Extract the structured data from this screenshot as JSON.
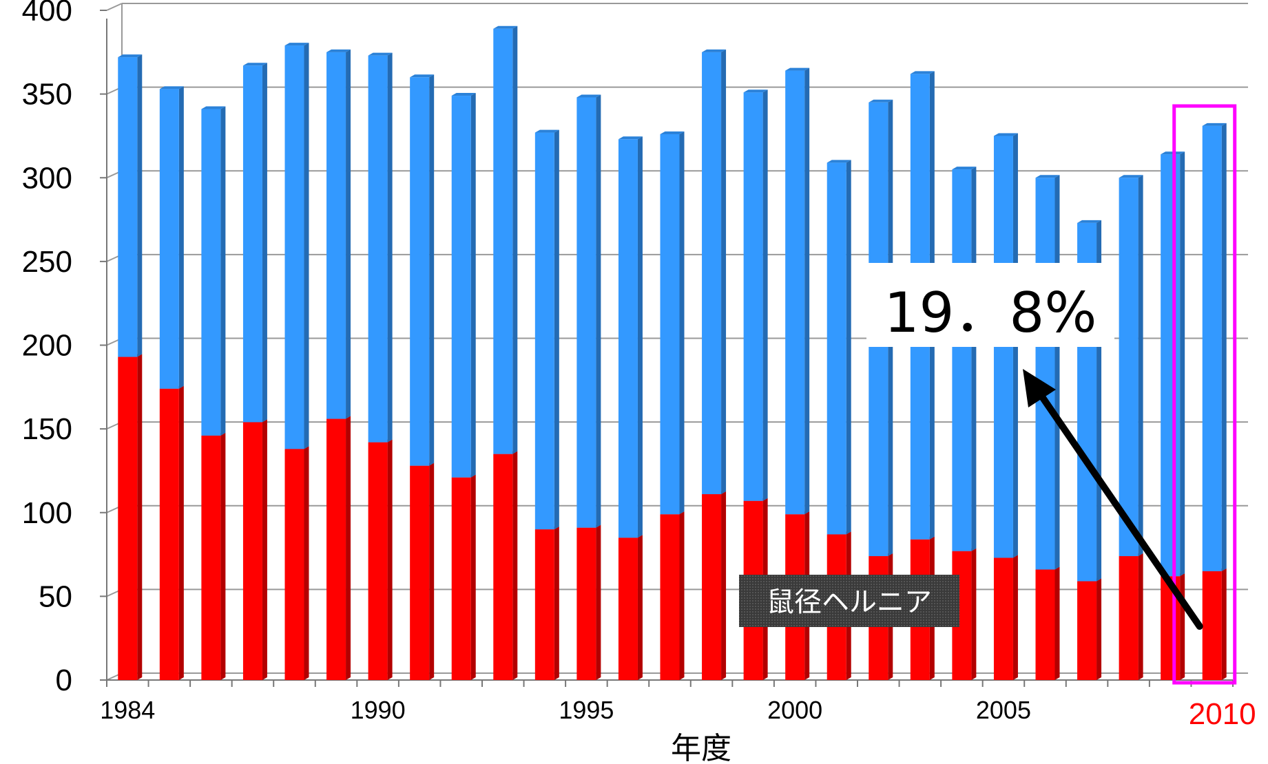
{
  "chart_data": {
    "type": "bar",
    "stacked": true,
    "xlabel": "年度",
    "ylabel": "",
    "ylim": [
      0,
      400
    ],
    "yticks": [
      "0",
      "50",
      "100",
      "150",
      "200",
      "250",
      "300",
      "350",
      "400"
    ],
    "x": [
      1984,
      1985,
      1986,
      1987,
      1988,
      1989,
      1990,
      1991,
      1992,
      1993,
      1994,
      1995,
      1996,
      1997,
      1998,
      1999,
      2000,
      2001,
      2002,
      2003,
      2004,
      2005,
      2006,
      2007,
      2008,
      2009,
      2010
    ],
    "xtick_labels": [
      {
        "index": 0,
        "label": "1984"
      },
      {
        "index": 6,
        "label": "1990"
      },
      {
        "index": 11,
        "label": "1995"
      },
      {
        "index": 16,
        "label": "2000"
      },
      {
        "index": 21,
        "label": "2005"
      },
      {
        "index": 26,
        "label": "2010"
      }
    ],
    "series": [
      {
        "name": "鼠径ヘルニア",
        "color": "#ff0000",
        "values": [
          193,
          174,
          146,
          154,
          138,
          156,
          142,
          128,
          121,
          135,
          90,
          91,
          85,
          99,
          111,
          107,
          99,
          87,
          74,
          84,
          77,
          73,
          66,
          59,
          74,
          62,
          65
        ]
      },
      {
        "color": "#3399ff",
        "values": [
          179,
          179,
          195,
          213,
          241,
          219,
          231,
          232,
          228,
          254,
          237,
          257,
          238,
          227,
          264,
          244,
          265,
          222,
          271,
          278,
          228,
          252,
          234,
          214,
          226,
          252,
          266
        ]
      }
    ],
    "grid": true,
    "highlight": {
      "index": 26,
      "color": "#ff00ff"
    },
    "annotation": {
      "text": "19．8%",
      "arrow_to_index": 26
    },
    "colors": {
      "bar_front_red": "#ff0000",
      "bar_front_blue": "#3399ff",
      "highlight_box": "#ff00ff",
      "highlight_label": "#ff0000",
      "legend_bg": "#3a3a3a"
    }
  }
}
